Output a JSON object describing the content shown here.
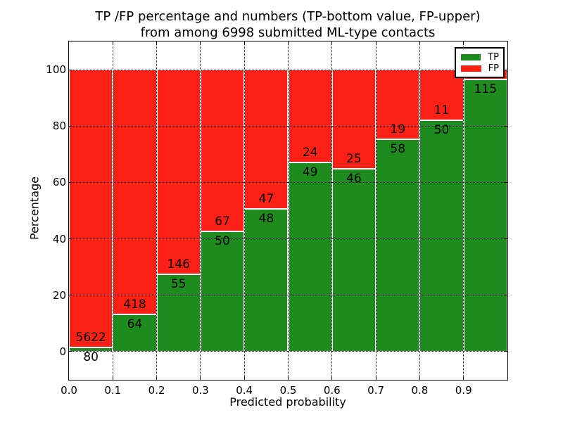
{
  "title": {
    "line1": "TP /FP percentage and numbers (TP-bottom value, FP-upper)",
    "line2": "from among 6998 submitted ML-type contacts"
  },
  "axes": {
    "xlabel": "Predicted probability",
    "ylabel": "Percentage"
  },
  "colors": {
    "tp_green": "#1e8b1e",
    "fp_red": "#fb2015",
    "bar_edge": "#ffffff",
    "grid": "#000000",
    "text": "#000000",
    "background": "#ffffff",
    "legend_border": "#000000",
    "legend_background": "#ffffff"
  },
  "chart_data": {
    "type": "bar",
    "stacked": true,
    "title": "TP /FP percentage and numbers (TP-bottom value, FP-upper) from among 6998 submitted ML-type contacts",
    "xlabel": "Predicted probability",
    "ylabel": "Percentage",
    "total_contacts": 6998,
    "xlim": [
      0.0,
      1.0
    ],
    "ylim": [
      -10,
      110
    ],
    "grid": true,
    "legend_position": "upper right",
    "x_ticks": [
      {
        "value": 0.0,
        "label": "0.0"
      },
      {
        "value": 0.1,
        "label": "0.1"
      },
      {
        "value": 0.2,
        "label": "0.2"
      },
      {
        "value": 0.3,
        "label": "0.3"
      },
      {
        "value": 0.4,
        "label": "0.4"
      },
      {
        "value": 0.5,
        "label": "0.5"
      },
      {
        "value": 0.6,
        "label": "0.6"
      },
      {
        "value": 0.7,
        "label": "0.7"
      },
      {
        "value": 0.8,
        "label": "0.8"
      },
      {
        "value": 0.9,
        "label": "0.9"
      }
    ],
    "y_ticks": [
      {
        "value": 0,
        "label": "0"
      },
      {
        "value": 20,
        "label": "20"
      },
      {
        "value": 40,
        "label": "40"
      },
      {
        "value": 60,
        "label": "60"
      },
      {
        "value": 80,
        "label": "80"
      },
      {
        "value": 100,
        "label": "100"
      }
    ],
    "series": [
      {
        "name": "TP",
        "color": "#1e8b1e"
      },
      {
        "name": "FP",
        "color": "#fb2015"
      }
    ],
    "bins": [
      {
        "x0": 0.0,
        "x1": 0.1,
        "tp_count": 80,
        "fp_count": 5622,
        "tp_pct": 1.4,
        "tp_label": "80",
        "fp_label": "5622"
      },
      {
        "x0": 0.1,
        "x1": 0.2,
        "tp_count": 64,
        "fp_count": 418,
        "tp_pct": 13.3,
        "tp_label": "64",
        "fp_label": "418"
      },
      {
        "x0": 0.2,
        "x1": 0.3,
        "tp_count": 55,
        "fp_count": 146,
        "tp_pct": 27.4,
        "tp_label": "55",
        "fp_label": "146"
      },
      {
        "x0": 0.3,
        "x1": 0.4,
        "tp_count": 50,
        "fp_count": 67,
        "tp_pct": 42.7,
        "tp_label": "50",
        "fp_label": "67"
      },
      {
        "x0": 0.4,
        "x1": 0.5,
        "tp_count": 48,
        "fp_count": 47,
        "tp_pct": 50.5,
        "tp_label": "48",
        "fp_label": "47"
      },
      {
        "x0": 0.5,
        "x1": 0.6,
        "tp_count": 49,
        "fp_count": 24,
        "tp_pct": 67.1,
        "tp_label": "49",
        "fp_label": "24"
      },
      {
        "x0": 0.6,
        "x1": 0.7,
        "tp_count": 46,
        "fp_count": 25,
        "tp_pct": 64.8,
        "tp_label": "46",
        "fp_label": "25"
      },
      {
        "x0": 0.7,
        "x1": 0.8,
        "tp_count": 58,
        "fp_count": 19,
        "tp_pct": 75.3,
        "tp_label": "58",
        "fp_label": "19"
      },
      {
        "x0": 0.8,
        "x1": 0.9,
        "tp_count": 50,
        "fp_count": 11,
        "tp_pct": 82.0,
        "tp_label": "50",
        "fp_label": "11"
      },
      {
        "x0": 0.9,
        "x1": 1.0,
        "tp_count": 115,
        "tp_pct": 96.6,
        "tp_label": "115",
        "fp_label": ""
      }
    ]
  }
}
